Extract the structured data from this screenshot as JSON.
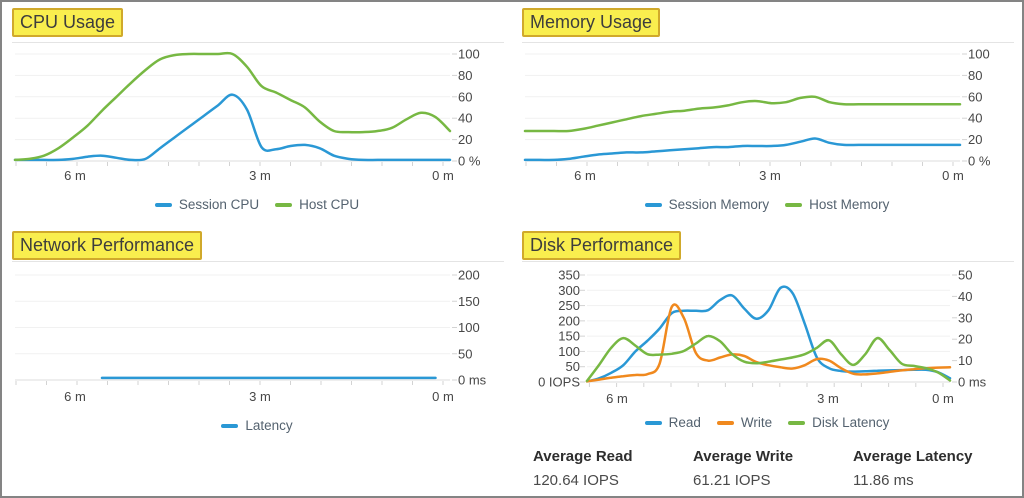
{
  "colors": {
    "series_blue": "#2a98d5",
    "series_green": "#77b843",
    "series_orange": "#f0891e",
    "highlight_bg": "#f9ee4e",
    "highlight_border": "#d0a92b",
    "frame_border": "#848484"
  },
  "panels": [
    {
      "title": "CPU Usage"
    },
    {
      "title": "Memory Usage"
    },
    {
      "title": "Network Performance"
    },
    {
      "title": "Disk Performance"
    }
  ],
  "chart_data": [
    {
      "type": "line",
      "title": "CPU Usage",
      "x_labels": [
        "6 m",
        "3 m",
        "0 m"
      ],
      "grid": true,
      "legend_position": "bottom",
      "axes": {
        "right": {
          "labels": [
            "100",
            "80",
            "60",
            "40",
            "20",
            "0 %"
          ],
          "min": 0,
          "max": 100
        }
      },
      "series": [
        {
          "name": "Session CPU",
          "color_key": "series_blue",
          "axis": "right",
          "values": [
            1,
            1,
            1,
            1,
            2,
            4,
            5,
            3,
            1,
            2,
            12,
            22,
            32,
            42,
            52,
            62,
            48,
            13,
            11,
            14,
            15,
            12,
            5,
            2,
            1,
            1,
            1,
            1,
            1,
            1,
            1
          ]
        },
        {
          "name": "Host CPU",
          "color_key": "series_green",
          "axis": "right",
          "values": [
            1,
            2,
            5,
            12,
            22,
            33,
            47,
            60,
            73,
            85,
            95,
            99,
            100,
            100,
            100,
            100,
            88,
            70,
            64,
            57,
            50,
            37,
            28,
            27,
            27,
            28,
            31,
            39,
            45,
            41,
            28
          ]
        }
      ]
    },
    {
      "type": "line",
      "title": "Memory Usage",
      "x_labels": [
        "6 m",
        "3 m",
        "0 m"
      ],
      "grid": true,
      "legend_position": "bottom",
      "axes": {
        "right": {
          "labels": [
            "100",
            "80",
            "60",
            "40",
            "20",
            "0 %"
          ],
          "min": 0,
          "max": 100
        }
      },
      "series": [
        {
          "name": "Session Memory",
          "color_key": "series_blue",
          "axis": "right",
          "values": [
            1,
            1,
            1,
            2,
            4,
            6,
            7,
            8,
            8,
            9,
            10,
            11,
            12,
            13,
            13,
            14,
            14,
            14,
            15,
            18,
            21,
            17,
            15,
            15,
            15,
            15,
            15,
            15,
            15,
            15,
            15
          ]
        },
        {
          "name": "Host Memory",
          "color_key": "series_green",
          "axis": "right",
          "values": [
            28,
            28,
            28,
            28,
            30,
            33,
            36,
            39,
            42,
            44,
            46,
            47,
            49,
            50,
            52,
            55,
            56,
            54,
            55,
            59,
            60,
            55,
            53,
            53,
            53,
            53,
            53,
            53,
            53,
            53,
            53
          ]
        }
      ]
    },
    {
      "type": "line",
      "title": "Network Performance",
      "x_labels": [
        "6 m",
        "3 m",
        "0 m"
      ],
      "grid": true,
      "legend_position": "bottom",
      "axes": {
        "right": {
          "labels": [
            "200",
            "150",
            "100",
            "50",
            "0 ms"
          ],
          "min": 0,
          "max": 200
        }
      },
      "series": [
        {
          "name": "Latency",
          "color_key": "series_blue",
          "axis": "right",
          "values": [
            null,
            null,
            null,
            null,
            null,
            null,
            4,
            4,
            4,
            4,
            4,
            4,
            4,
            4,
            4,
            4,
            4,
            4,
            4,
            4,
            4,
            4,
            4,
            4,
            4,
            4,
            4,
            4,
            4,
            4,
            null
          ]
        }
      ]
    },
    {
      "type": "line",
      "title": "Disk Performance",
      "x_labels": [
        "6 m",
        "3 m",
        "0 m"
      ],
      "grid": true,
      "legend_position": "bottom",
      "axes": {
        "left": {
          "labels": [
            "350",
            "300",
            "250",
            "200",
            "150",
            "100",
            "50",
            "0 IOPS"
          ],
          "min": 0,
          "max": 350
        },
        "right": {
          "labels": [
            "50",
            "40",
            "30",
            "20",
            "10",
            "0 ms"
          ],
          "min": 0,
          "max": 50
        }
      },
      "series": [
        {
          "name": "Read",
          "color_key": "series_blue",
          "axis": "left",
          "values": [
            2,
            12,
            30,
            55,
            100,
            135,
            175,
            225,
            233,
            233,
            235,
            268,
            283,
            240,
            207,
            235,
            308,
            290,
            190,
            80,
            45,
            36,
            34,
            35,
            37,
            38,
            39,
            40,
            40,
            32,
            12
          ]
        },
        {
          "name": "Write",
          "color_key": "series_orange",
          "axis": "left",
          "values": [
            2,
            8,
            14,
            19,
            23,
            26,
            60,
            245,
            210,
            95,
            70,
            80,
            90,
            85,
            65,
            55,
            48,
            44,
            55,
            75,
            70,
            45,
            27,
            25,
            28,
            33,
            38,
            42,
            45,
            47,
            48
          ]
        },
        {
          "name": "Disk Latency",
          "color_key": "series_green",
          "axis": "right",
          "values": [
            0.5,
            8,
            16,
            20.5,
            17,
            13,
            12.8,
            13.2,
            14.5,
            18,
            21.5,
            19,
            13,
            9.5,
            8.8,
            9.5,
            10.5,
            11.5,
            13,
            16,
            19.5,
            13,
            8,
            13,
            20.5,
            15,
            8.6,
            7.5,
            6.5,
            4.5,
            0.7
          ]
        }
      ],
      "stats": [
        {
          "label": "Average Read",
          "value": "120.64 IOPS"
        },
        {
          "label": "Average Write",
          "value": "61.21 IOPS"
        },
        {
          "label": "Average Latency",
          "value": "11.86 ms"
        }
      ]
    }
  ]
}
